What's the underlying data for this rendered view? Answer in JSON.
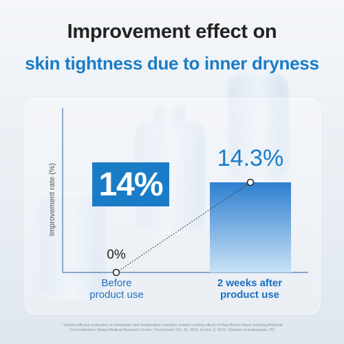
{
  "headline": {
    "line1": "Improvement effect on",
    "line2": "skin tightness due to inner dryness"
  },
  "difference_label": "14%",
  "footnote": {
    "line1": "* Human efficacy evaluation on immediate skin temperature reduction (instant cooling effect) of Real Barrier Aqua Soothing Ampoule",
    "line2": "(Test institution: Global Medical Research Center / Test period: Oct. 30, 2023, to Nov. 2, 2023 / Number of participants: 20)"
  },
  "chart_data": {
    "type": "bar",
    "categories": [
      "Before\nproduct use",
      "2 weeks after\nproduct use"
    ],
    "values": [
      0,
      14.3
    ],
    "data_labels": [
      "0%",
      "14.3%"
    ],
    "ylabel": "Improvement rate (%)",
    "ylim": [
      0,
      20
    ],
    "grid": false,
    "colors": {
      "bar_top": "#2f7fd0",
      "bar_bottom": "#c9e2f6",
      "accent": "#1a7cc6",
      "axis": "#4a78b0"
    }
  }
}
